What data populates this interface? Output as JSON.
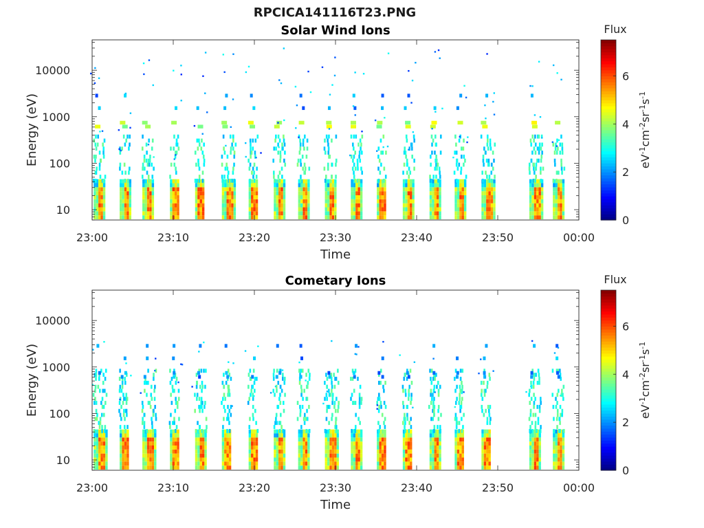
{
  "title": "RPCICA141116T23.PNG",
  "chart_data": [
    {
      "type": "heatmap",
      "title": "Solar Wind Ions",
      "xlabel": "Time",
      "ylabel": "Energy (eV)",
      "x_ticks": [
        "23:00",
        "23:10",
        "23:20",
        "23:30",
        "23:40",
        "23:50",
        "00:00"
      ],
      "x_range_minutes": [
        0,
        60
      ],
      "y_scale": "log",
      "y_ticks": [
        "10",
        "100",
        "1000",
        "10000"
      ],
      "y_range": [
        6,
        45000
      ],
      "colorbar": {
        "label_top": "Flux",
        "label": "eV-1cm-2sr-1s-1",
        "ticks": [
          "0",
          "2",
          "4",
          "6"
        ],
        "range": [
          0,
          7.5
        ],
        "colormap": "jet"
      },
      "bursts_minutes": [
        0.7,
        3.9,
        6.7,
        10.1,
        13.2,
        16.5,
        19.8,
        22.9,
        25.9,
        29.2,
        32.4,
        35.6,
        38.8,
        42.1,
        45.2,
        48.5,
        54.4,
        57.3
      ],
      "peak_flux_energy_eV": [
        10,
        30
      ],
      "secondary_energy_eV": [
        600,
        1500
      ]
    },
    {
      "type": "heatmap",
      "title": "Cometary Ions",
      "xlabel": "Time",
      "ylabel": "Energy (eV)",
      "x_ticks": [
        "23:00",
        "23:10",
        "23:20",
        "23:30",
        "23:40",
        "23:50",
        "00:00"
      ],
      "x_range_minutes": [
        0,
        60
      ],
      "y_scale": "log",
      "y_ticks": [
        "10",
        "100",
        "1000",
        "10000"
      ],
      "y_range": [
        6,
        45000
      ],
      "colorbar": {
        "label_top": "Flux",
        "label": "eV-1cm-2sr-1s-1",
        "ticks": [
          "0",
          "2",
          "4",
          "6"
        ],
        "range": [
          0,
          7.5
        ],
        "colormap": "jet"
      },
      "bursts_minutes": [
        0.7,
        3.9,
        6.7,
        10.1,
        13.2,
        16.5,
        19.8,
        22.9,
        25.9,
        29.2,
        32.4,
        35.6,
        38.8,
        42.1,
        45.2,
        48.5,
        54.4,
        57.3
      ],
      "peak_flux_energy_eV": [
        10,
        30
      ],
      "secondary_energy_eV": [
        600,
        1500
      ]
    }
  ]
}
